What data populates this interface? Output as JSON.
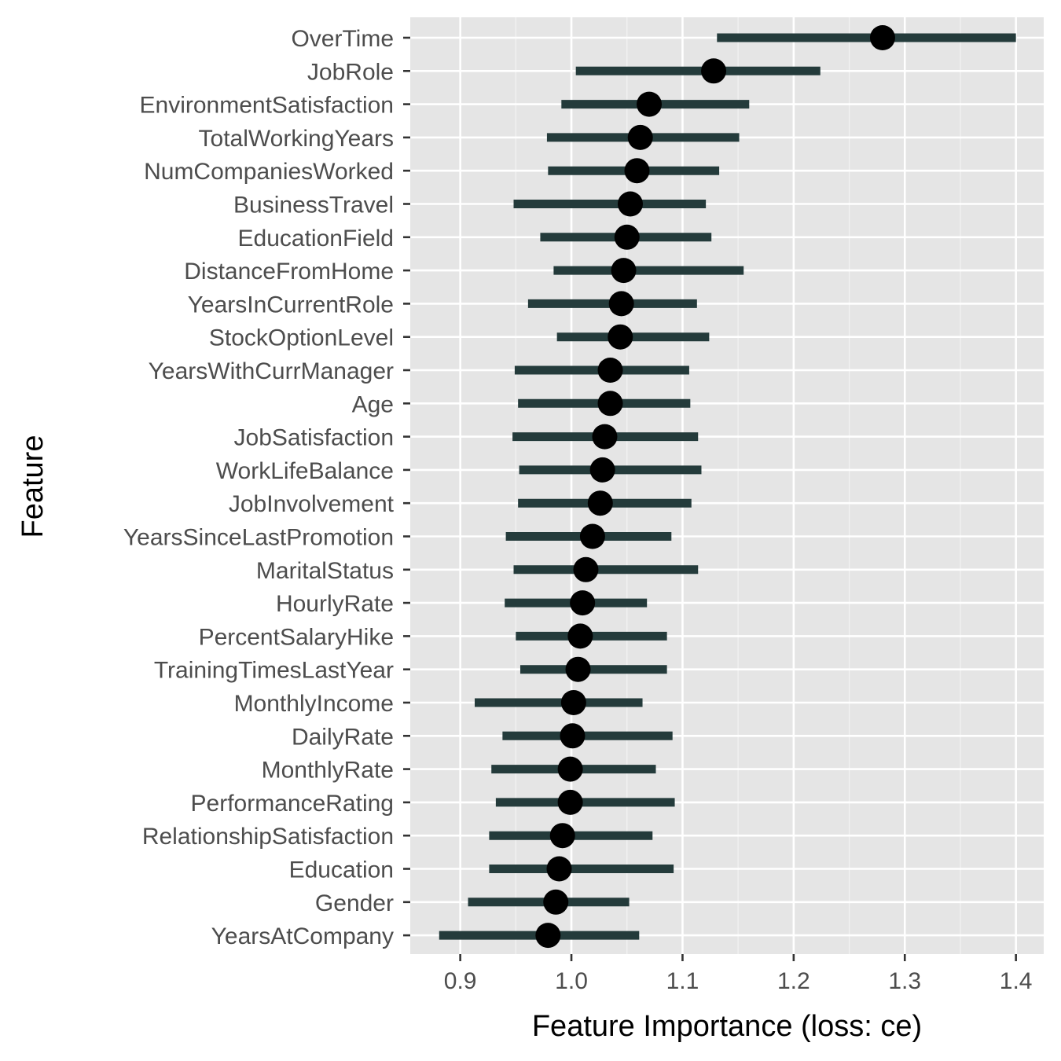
{
  "chart_data": {
    "type": "dot-errorbar",
    "xlabel": "Feature Importance (loss: ce)",
    "ylabel": "Feature",
    "xlim": [
      0.855,
      1.425
    ],
    "x_ticks": [
      0.9,
      1.0,
      1.1,
      1.2,
      1.3,
      1.4
    ],
    "x_tick_labels": [
      "0.9",
      "1.0",
      "1.1",
      "1.2",
      "1.3",
      "1.4"
    ],
    "grid": true,
    "colors": {
      "panel": "#e5e5e5",
      "grid": "#ffffff",
      "error_bar": "#243b3b",
      "point": "#000000"
    },
    "features": [
      {
        "name": "OverTime",
        "value": 1.28,
        "low": 1.131,
        "high": 1.4
      },
      {
        "name": "JobRole",
        "value": 1.128,
        "low": 1.004,
        "high": 1.224
      },
      {
        "name": "EnvironmentSatisfaction",
        "value": 1.07,
        "low": 0.991,
        "high": 1.16
      },
      {
        "name": "TotalWorkingYears",
        "value": 1.062,
        "low": 0.978,
        "high": 1.151
      },
      {
        "name": "NumCompaniesWorked",
        "value": 1.059,
        "low": 0.979,
        "high": 1.133
      },
      {
        "name": "BusinessTravel",
        "value": 1.053,
        "low": 0.948,
        "high": 1.121
      },
      {
        "name": "EducationField",
        "value": 1.05,
        "low": 0.972,
        "high": 1.126
      },
      {
        "name": "DistanceFromHome",
        "value": 1.047,
        "low": 0.984,
        "high": 1.155
      },
      {
        "name": "YearsInCurrentRole",
        "value": 1.045,
        "low": 0.961,
        "high": 1.113
      },
      {
        "name": "StockOptionLevel",
        "value": 1.044,
        "low": 0.987,
        "high": 1.124
      },
      {
        "name": "YearsWithCurrManager",
        "value": 1.035,
        "low": 0.949,
        "high": 1.106
      },
      {
        "name": "Age",
        "value": 1.035,
        "low": 0.952,
        "high": 1.107
      },
      {
        "name": "JobSatisfaction",
        "value": 1.03,
        "low": 0.947,
        "high": 1.114
      },
      {
        "name": "WorkLifeBalance",
        "value": 1.028,
        "low": 0.953,
        "high": 1.117
      },
      {
        "name": "JobInvolvement",
        "value": 1.026,
        "low": 0.952,
        "high": 1.108
      },
      {
        "name": "YearsSinceLastPromotion",
        "value": 1.019,
        "low": 0.941,
        "high": 1.09
      },
      {
        "name": "MaritalStatus",
        "value": 1.013,
        "low": 0.948,
        "high": 1.114
      },
      {
        "name": "HourlyRate",
        "value": 1.01,
        "low": 0.94,
        "high": 1.068
      },
      {
        "name": "PercentSalaryHike",
        "value": 1.008,
        "low": 0.95,
        "high": 1.086
      },
      {
        "name": "TrainingTimesLastYear",
        "value": 1.006,
        "low": 0.954,
        "high": 1.086
      },
      {
        "name": "MonthlyIncome",
        "value": 1.002,
        "low": 0.913,
        "high": 1.064
      },
      {
        "name": "DailyRate",
        "value": 1.001,
        "low": 0.938,
        "high": 1.091
      },
      {
        "name": "MonthlyRate",
        "value": 0.999,
        "low": 0.928,
        "high": 1.076
      },
      {
        "name": "PerformanceRating",
        "value": 0.999,
        "low": 0.932,
        "high": 1.093
      },
      {
        "name": "RelationshipSatisfaction",
        "value": 0.992,
        "low": 0.926,
        "high": 1.073
      },
      {
        "name": "Education",
        "value": 0.989,
        "low": 0.926,
        "high": 1.092
      },
      {
        "name": "Gender",
        "value": 0.986,
        "low": 0.907,
        "high": 1.052
      },
      {
        "name": "YearsAtCompany",
        "value": 0.979,
        "low": 0.881,
        "high": 1.061
      }
    ]
  }
}
